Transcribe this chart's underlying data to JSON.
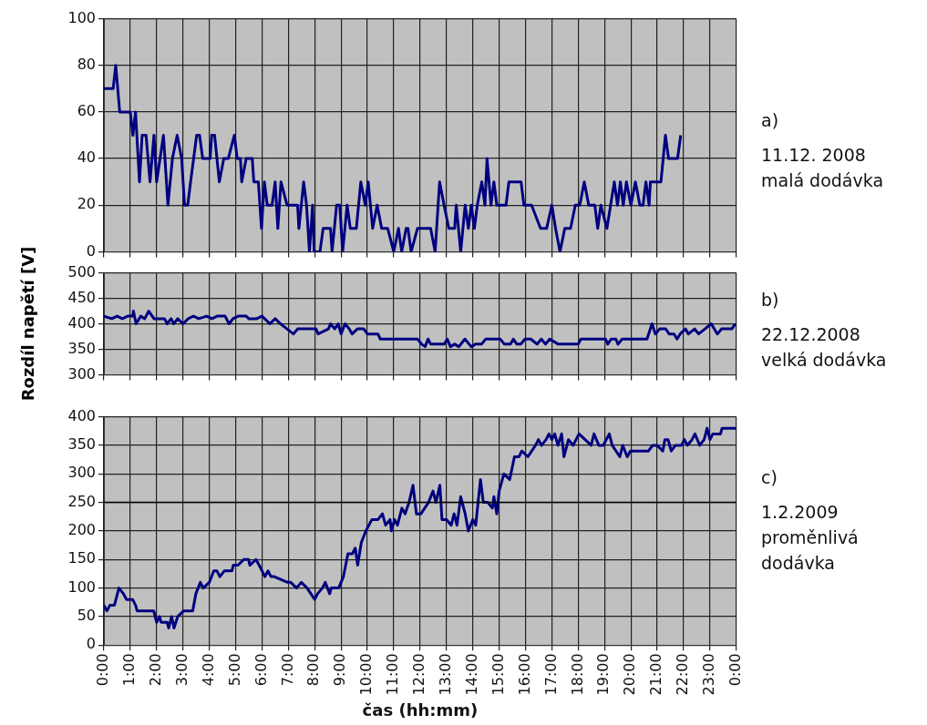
{
  "chart_data": [
    {
      "type": "line",
      "tick_labels": "y",
      "grid": true,
      "marker": "none",
      "legend": false,
      "xlim": [
        0,
        24
      ],
      "xticks": [
        {
          "value": 0,
          "label": null
        },
        {
          "value": 1,
          "label": null
        },
        {
          "value": 2,
          "label": null
        },
        {
          "value": 3,
          "label": null
        },
        {
          "value": 4,
          "label": null
        },
        {
          "value": 5,
          "label": null
        },
        {
          "value": 6,
          "label": null
        },
        {
          "value": 7,
          "label": null
        },
        {
          "value": 8,
          "label": null
        },
        {
          "value": 9,
          "label": null
        },
        {
          "value": 10,
          "label": null
        },
        {
          "value": 11,
          "label": null
        },
        {
          "value": 12,
          "label": null
        },
        {
          "value": 13,
          "label": null
        },
        {
          "value": 14,
          "label": null
        },
        {
          "value": 15,
          "label": null
        },
        {
          "value": 16,
          "label": null
        },
        {
          "value": 17,
          "label": null
        },
        {
          "value": 18,
          "label": null
        },
        {
          "value": 19,
          "label": null
        },
        {
          "value": 20,
          "label": null
        },
        {
          "value": 21,
          "label": null
        },
        {
          "value": 22,
          "label": null
        },
        {
          "value": 23,
          "label": null
        },
        {
          "value": 24,
          "label": null
        }
      ],
      "ylim": [
        0,
        100
      ],
      "yticks": [
        0,
        20,
        40,
        60,
        80,
        100
      ],
      "annotations": [
        "a)",
        "11.12. 2008",
        "malá dodávka"
      ],
      "series": [
        {
          "color": "#000080",
          "x": [
            0,
            0.35,
            0.45,
            0.6,
            1.0,
            1.1,
            1.2,
            1.35,
            1.45,
            1.6,
            1.75,
            1.9,
            2.0,
            2.26,
            2.43,
            2.6,
            2.78,
            2.95,
            3.06,
            3.18,
            3.29,
            3.52,
            3.63,
            3.75,
            4.03,
            4.09,
            4.2,
            4.38,
            4.55,
            4.72,
            4.95,
            5.06,
            5.18,
            5.23,
            5.4,
            5.63,
            5.69,
            5.86,
            5.98,
            6.09,
            6.2,
            6.38,
            6.5,
            6.6,
            6.72,
            6.95,
            7.35,
            7.4,
            7.58,
            7.69,
            7.8,
            7.92,
            7.98,
            8.2,
            8.32,
            8.6,
            8.66,
            8.83,
            8.95,
            9.06,
            9.23,
            9.35,
            9.58,
            9.75,
            9.92,
            10.03,
            10.2,
            10.37,
            10.54,
            10.77,
            11.0,
            11.18,
            11.3,
            11.47,
            11.54,
            11.66,
            11.9,
            12.4,
            12.57,
            12.74,
            12.91,
            13.09,
            13.31,
            13.37,
            13.54,
            13.71,
            13.83,
            13.94,
            14.06,
            14.17,
            14.34,
            14.46,
            14.54,
            14.69,
            14.8,
            14.91,
            15.26,
            15.37,
            15.83,
            15.94,
            16.23,
            16.57,
            16.8,
            17.0,
            17.14,
            17.31,
            17.49,
            17.71,
            17.89,
            18.06,
            18.23,
            18.4,
            18.63,
            18.74,
            18.86,
            19.09,
            19.37,
            19.49,
            19.6,
            19.71,
            19.83,
            20.0,
            20.17,
            20.34,
            20.46,
            20.57,
            20.69,
            20.74,
            21.14,
            21.31,
            21.43,
            21.77,
            21.89
          ],
          "values": [
            70,
            70,
            80,
            60,
            60,
            50,
            60,
            30,
            50,
            50,
            30,
            50,
            30,
            50,
            20,
            40,
            50,
            40,
            20,
            20,
            30,
            50,
            50,
            40,
            40,
            50,
            50,
            30,
            40,
            40,
            50,
            40,
            40,
            30,
            40,
            40,
            30,
            30,
            10,
            30,
            20,
            20,
            30,
            10,
            30,
            20,
            20,
            10,
            30,
            20,
            0,
            20,
            0,
            0,
            10,
            10,
            0,
            20,
            20,
            0,
            20,
            10,
            10,
            30,
            20,
            30,
            10,
            20,
            10,
            10,
            0,
            10,
            0,
            10,
            10,
            0,
            10,
            10,
            0,
            30,
            20,
            10,
            10,
            20,
            0,
            20,
            10,
            20,
            10,
            20,
            30,
            20,
            40,
            20,
            30,
            20,
            20,
            30,
            30,
            20,
            20,
            10,
            10,
            20,
            10,
            0,
            10,
            10,
            20,
            20,
            30,
            20,
            20,
            10,
            20,
            10,
            30,
            20,
            30,
            20,
            30,
            20,
            30,
            20,
            20,
            30,
            20,
            30,
            30,
            50,
            40,
            40,
            50
          ]
        }
      ]
    },
    {
      "type": "line",
      "tick_labels": "y",
      "grid": true,
      "marker": "none",
      "legend": false,
      "ylabel": "Rozdíl napětí [V]",
      "xlim": [
        0,
        24
      ],
      "xticks": [
        {
          "value": 0,
          "label": null
        },
        {
          "value": 1,
          "label": null
        },
        {
          "value": 2,
          "label": null
        },
        {
          "value": 3,
          "label": null
        },
        {
          "value": 4,
          "label": null
        },
        {
          "value": 5,
          "label": null
        },
        {
          "value": 6,
          "label": null
        },
        {
          "value": 7,
          "label": null
        },
        {
          "value": 8,
          "label": null
        },
        {
          "value": 9,
          "label": null
        },
        {
          "value": 10,
          "label": null
        },
        {
          "value": 11,
          "label": null
        },
        {
          "value": 12,
          "label": null
        },
        {
          "value": 13,
          "label": null
        },
        {
          "value": 14,
          "label": null
        },
        {
          "value": 15,
          "label": null
        },
        {
          "value": 16,
          "label": null
        },
        {
          "value": 17,
          "label": null
        },
        {
          "value": 18,
          "label": null
        },
        {
          "value": 19,
          "label": null
        },
        {
          "value": 20,
          "label": null
        },
        {
          "value": 21,
          "label": null
        },
        {
          "value": 22,
          "label": null
        },
        {
          "value": 23,
          "label": null
        },
        {
          "value": 24,
          "label": null
        }
      ],
      "ylim": [
        300,
        500
      ],
      "yticks": [
        300,
        350,
        400,
        450,
        500
      ],
      "annotations": [
        "b)",
        "22.12.2008",
        "velká dodávka"
      ],
      "series": [
        {
          "color": "#000080",
          "x": [
            0,
            0.3,
            0.5,
            0.7,
            0.9,
            1.1,
            1.12,
            1.22,
            1.4,
            1.55,
            1.7,
            1.9,
            2.3,
            2.4,
            2.55,
            2.65,
            2.8,
            3.0,
            3.2,
            3.4,
            3.6,
            3.9,
            4.1,
            4.3,
            4.6,
            4.75,
            4.9,
            5.1,
            5.4,
            5.5,
            5.8,
            6.0,
            6.3,
            6.5,
            6.7,
            6.95,
            7.19,
            7.35,
            8.05,
            8.13,
            8.52,
            8.6,
            8.76,
            8.89,
            9.0,
            9.15,
            9.31,
            9.42,
            9.62,
            9.86,
            10.0,
            10.4,
            10.49,
            11.9,
            12.06,
            12.19,
            12.3,
            12.4,
            12.92,
            13.03,
            13.15,
            13.31,
            13.47,
            13.7,
            13.86,
            13.94,
            14.1,
            14.33,
            14.49,
            15.04,
            15.2,
            15.43,
            15.54,
            15.67,
            15.82,
            15.98,
            16.2,
            16.44,
            16.6,
            16.76,
            16.92,
            17.24,
            18.0,
            18.1,
            19.04,
            19.12,
            19.25,
            19.43,
            19.51,
            19.67,
            20.61,
            20.8,
            20.93,
            21.09,
            21.32,
            21.45,
            21.64,
            21.75,
            21.87,
            22.07,
            22.18,
            22.42,
            22.57,
            22.81,
            23.05,
            23.28,
            23.44,
            23.83,
            23.96
          ],
          "values": [
            415,
            410,
            415,
            410,
            415,
            415,
            425,
            400,
            415,
            410,
            425,
            410,
            410,
            400,
            410,
            400,
            410,
            400,
            410,
            415,
            410,
            415,
            410,
            415,
            415,
            400,
            410,
            415,
            415,
            410,
            410,
            415,
            400,
            410,
            400,
            390,
            380,
            390,
            390,
            380,
            390,
            400,
            390,
            400,
            380,
            400,
            390,
            380,
            390,
            390,
            380,
            380,
            370,
            370,
            360,
            355,
            370,
            360,
            360,
            370,
            355,
            360,
            355,
            370,
            360,
            355,
            360,
            360,
            370,
            370,
            360,
            360,
            370,
            360,
            360,
            370,
            370,
            360,
            370,
            360,
            370,
            360,
            360,
            370,
            370,
            360,
            370,
            370,
            360,
            370,
            370,
            400,
            380,
            390,
            390,
            380,
            380,
            370,
            380,
            390,
            380,
            390,
            380,
            390,
            400,
            380,
            390,
            390,
            400
          ]
        }
      ]
    },
    {
      "type": "line",
      "grid": true,
      "marker": "none",
      "legend": false,
      "xlabel": "čas (hh:mm)",
      "xlim": [
        0,
        24
      ],
      "xticks": [
        {
          "value": 0,
          "label": "0:00"
        },
        {
          "value": 1,
          "label": "1:00"
        },
        {
          "value": 2,
          "label": "2:00"
        },
        {
          "value": 3,
          "label": "3:00"
        },
        {
          "value": 4,
          "label": "4:00"
        },
        {
          "value": 5,
          "label": "5:00"
        },
        {
          "value": 6,
          "label": "6:00"
        },
        {
          "value": 7,
          "label": "7:00"
        },
        {
          "value": 8,
          "label": "8:00"
        },
        {
          "value": 9,
          "label": "9:00"
        },
        {
          "value": 10,
          "label": "10:00"
        },
        {
          "value": 11,
          "label": "11:00"
        },
        {
          "value": 12,
          "label": "12:00"
        },
        {
          "value": 13,
          "label": "13:00"
        },
        {
          "value": 14,
          "label": "14:00"
        },
        {
          "value": 15,
          "label": "15:00"
        },
        {
          "value": 16,
          "label": "16:00"
        },
        {
          "value": 17,
          "label": "17:00"
        },
        {
          "value": 18,
          "label": "18:00"
        },
        {
          "value": 19,
          "label": "19:00"
        },
        {
          "value": 20,
          "label": "20:00"
        },
        {
          "value": 21,
          "label": "21:00"
        },
        {
          "value": 22,
          "label": "22:00"
        },
        {
          "value": 23,
          "label": "23:00"
        },
        {
          "value": 24,
          "label": "0:00"
        }
      ],
      "ylim": [
        0,
        400
      ],
      "yticks": [
        0,
        50,
        100,
        150,
        200,
        250,
        300,
        350,
        400
      ],
      "ref_lines": [
        {
          "axis": "y",
          "value": 250,
          "color": "#000000"
        }
      ],
      "annotations": [
        "c)",
        "1.2.2009",
        "proměnlivá",
        "dodávka"
      ],
      "series": [
        {
          "color": "#000080",
          "x": [
            0,
            0.11,
            0.23,
            0.4,
            0.57,
            0.74,
            0.86,
            1.09,
            1.2,
            1.26,
            1.89,
            2.0,
            2.11,
            2.17,
            2.4,
            2.46,
            2.57,
            2.66,
            2.8,
            3.03,
            3.37,
            3.49,
            3.66,
            3.77,
            4.0,
            4.17,
            4.29,
            4.4,
            4.57,
            4.86,
            4.91,
            5.09,
            5.31,
            5.49,
            5.54,
            5.77,
            5.89,
            6.11,
            6.23,
            6.34,
            6.46,
            6.97,
            7.09,
            7.31,
            7.49,
            7.71,
            8.0,
            8.11,
            8.29,
            8.4,
            8.57,
            8.63,
            8.91,
            9.09,
            9.26,
            9.43,
            9.54,
            9.63,
            9.77,
            9.94,
            10.17,
            10.4,
            10.57,
            10.69,
            10.86,
            10.91,
            11.03,
            11.14,
            11.31,
            11.43,
            11.58,
            11.73,
            11.86,
            12.03,
            12.32,
            12.49,
            12.6,
            12.75,
            12.83,
            13.0,
            13.18,
            13.29,
            13.4,
            13.54,
            13.71,
            13.83,
            14.0,
            14.11,
            14.29,
            14.4,
            14.57,
            14.74,
            14.8,
            14.91,
            15.0,
            15.18,
            15.4,
            15.58,
            15.75,
            15.86,
            16.09,
            16.38,
            16.49,
            16.61,
            16.78,
            16.89,
            17.0,
            17.11,
            17.23,
            17.37,
            17.46,
            17.63,
            17.81,
            18.03,
            18.26,
            18.49,
            18.6,
            18.78,
            18.95,
            19.18,
            19.29,
            19.58,
            19.69,
            19.86,
            19.98,
            20.66,
            20.83,
            21.0,
            21.21,
            21.29,
            21.41,
            21.53,
            21.69,
            21.92,
            22.03,
            22.14,
            22.32,
            22.43,
            22.61,
            22.78,
            22.89,
            23.0,
            23.11,
            23.4,
            23.46,
            23.98
          ],
          "values": [
            70,
            60,
            70,
            70,
            100,
            90,
            80,
            80,
            70,
            60,
            60,
            40,
            50,
            40,
            40,
            30,
            50,
            30,
            50,
            60,
            60,
            90,
            110,
            100,
            110,
            130,
            130,
            120,
            130,
            130,
            140,
            140,
            150,
            150,
            140,
            150,
            140,
            120,
            130,
            120,
            120,
            110,
            110,
            100,
            110,
            100,
            80,
            90,
            100,
            110,
            90,
            100,
            100,
            120,
            160,
            160,
            170,
            140,
            180,
            200,
            220,
            220,
            230,
            210,
            220,
            200,
            220,
            210,
            240,
            230,
            250,
            280,
            230,
            230,
            250,
            270,
            250,
            280,
            220,
            220,
            210,
            230,
            210,
            260,
            230,
            200,
            220,
            210,
            290,
            250,
            250,
            240,
            260,
            230,
            270,
            300,
            290,
            330,
            330,
            340,
            330,
            350,
            360,
            350,
            360,
            370,
            360,
            370,
            350,
            370,
            330,
            360,
            350,
            370,
            360,
            350,
            370,
            350,
            350,
            370,
            350,
            330,
            350,
            330,
            340,
            340,
            350,
            350,
            340,
            360,
            360,
            340,
            350,
            350,
            360,
            350,
            360,
            370,
            350,
            360,
            380,
            360,
            370,
            370,
            380,
            380
          ]
        }
      ]
    }
  ]
}
